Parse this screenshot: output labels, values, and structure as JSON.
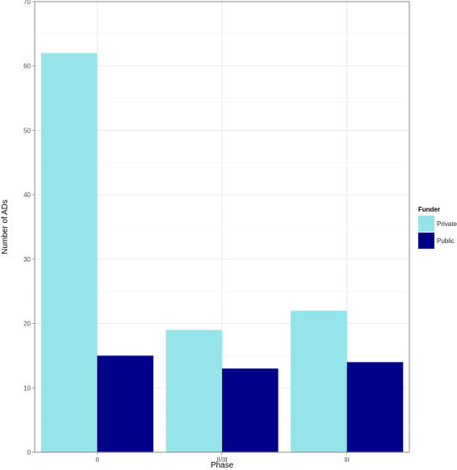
{
  "chart_data": {
    "type": "bar",
    "categories": [
      "II",
      "II/III",
      "III"
    ],
    "series": [
      {
        "name": "Private",
        "values": [
          62,
          19,
          22
        ],
        "color": "#94E4EA"
      },
      {
        "name": "Public",
        "values": [
          15,
          13,
          14
        ],
        "color": "#00008B"
      }
    ],
    "xlabel": "Phase",
    "ylabel": "Number of ADs",
    "ylim": [
      0,
      70
    ],
    "yticks": [
      0,
      10,
      20,
      30,
      40,
      50,
      60,
      70
    ],
    "grid": true,
    "legend": {
      "title": "Funder",
      "placement": "right"
    },
    "panel_border_color": "#888888",
    "grid_color": "#e6e6e6"
  }
}
